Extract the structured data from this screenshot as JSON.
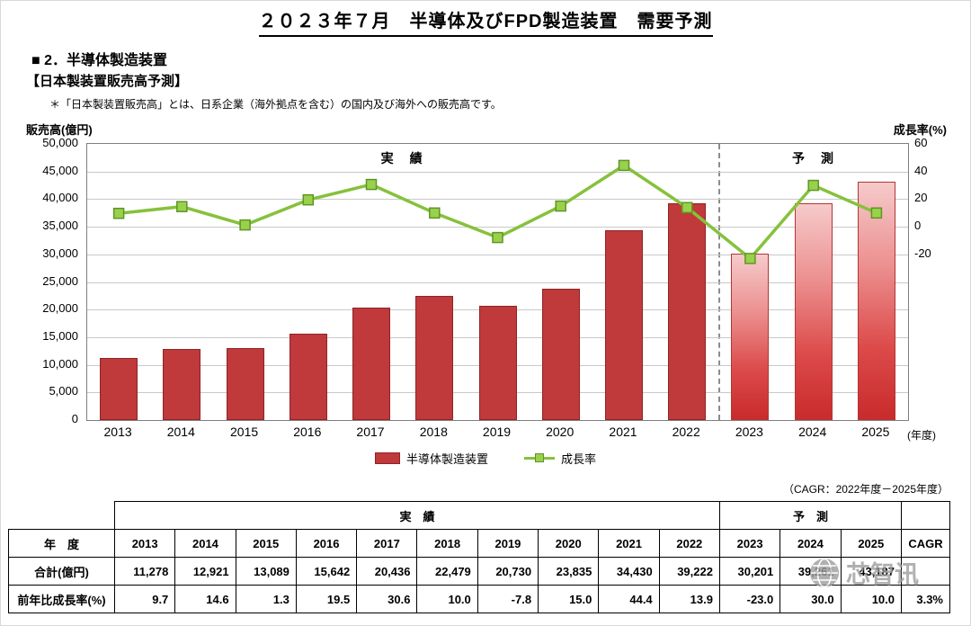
{
  "page_title": "２０２３年７月　半導体及びFPD製造装置　需要予測",
  "section": {
    "heading": "■ 2．半導体製造装置",
    "subheading": "【日本製装置販売高予測】",
    "note": "＊「日本製装置販売高」とは、日系企業（海外拠点を含む）の国内及び海外への販売高です。"
  },
  "chart_data": {
    "type": "bar+line",
    "categories": [
      "2013",
      "2014",
      "2015",
      "2016",
      "2017",
      "2018",
      "2019",
      "2020",
      "2021",
      "2022",
      "2023",
      "2024",
      "2025"
    ],
    "series": [
      {
        "name": "半導体製造装置",
        "type": "bar",
        "yaxis": "left",
        "values": [
          11278,
          12921,
          13089,
          15642,
          20436,
          22479,
          20730,
          23835,
          34430,
          39222,
          30201,
          39261,
          43187
        ]
      },
      {
        "name": "成長率",
        "type": "line",
        "yaxis": "right",
        "values": [
          9.7,
          14.6,
          1.3,
          19.5,
          30.6,
          10.0,
          -7.8,
          15.0,
          44.4,
          13.9,
          -23.0,
          30.0,
          10.0
        ]
      }
    ],
    "left_axis": {
      "title": "販売高(億円)",
      "min": 0,
      "max": 50000,
      "step": 5000
    },
    "right_axis": {
      "title": "成長率(%)",
      "tick_labels": [
        60,
        40,
        20,
        0,
        -20
      ],
      "percent_zero_at_left_value": 35000,
      "left_units_per_percent": 250
    },
    "forecast_start_index": 10,
    "actual_region_label": "実　績",
    "forecast_region_label": "予　測",
    "x_axis_suffix": "(年度)",
    "legend": [
      "半導体製造装置",
      "成長率"
    ],
    "grid": true
  },
  "colors": {
    "bar_actual": "#c0393b",
    "bar_actual_border": "#8e2426",
    "bar_forecast_top": "#f6caca",
    "bar_forecast_bottom": "#c92b2b",
    "bar_forecast_border": "#b23535",
    "line": "#86c13c",
    "marker_fill": "#9ad14b",
    "marker_border": "#5f9428",
    "dashed_divider": "#8c8c8c",
    "watermark": "#9d9d9d"
  },
  "cagr_note": "（CAGR：2022年度－2025年度）",
  "table": {
    "group_headers": {
      "actual": "実　績",
      "forecast": "予　測"
    },
    "row_headers": {
      "year": "年　度",
      "total": "合計(億円)",
      "growth": "前年比成長率(%)"
    },
    "cagr_header": "CAGR",
    "years": [
      "2013",
      "2014",
      "2015",
      "2016",
      "2017",
      "2018",
      "2019",
      "2020",
      "2021",
      "2022",
      "2023",
      "2024",
      "2025"
    ],
    "totals": [
      "11,278",
      "12,921",
      "13,089",
      "15,642",
      "20,436",
      "22,479",
      "20,730",
      "23,835",
      "34,430",
      "39,222",
      "30,201",
      "39,261",
      "43,187"
    ],
    "growth": [
      "9.7",
      "14.6",
      "1.3",
      "19.5",
      "30.6",
      "10.0",
      "-7.8",
      "15.0",
      "44.4",
      "13.9",
      "-23.0",
      "30.0",
      "10.0"
    ],
    "cagr_value": "3.3%"
  },
  "watermark": {
    "text": "芯智讯"
  }
}
